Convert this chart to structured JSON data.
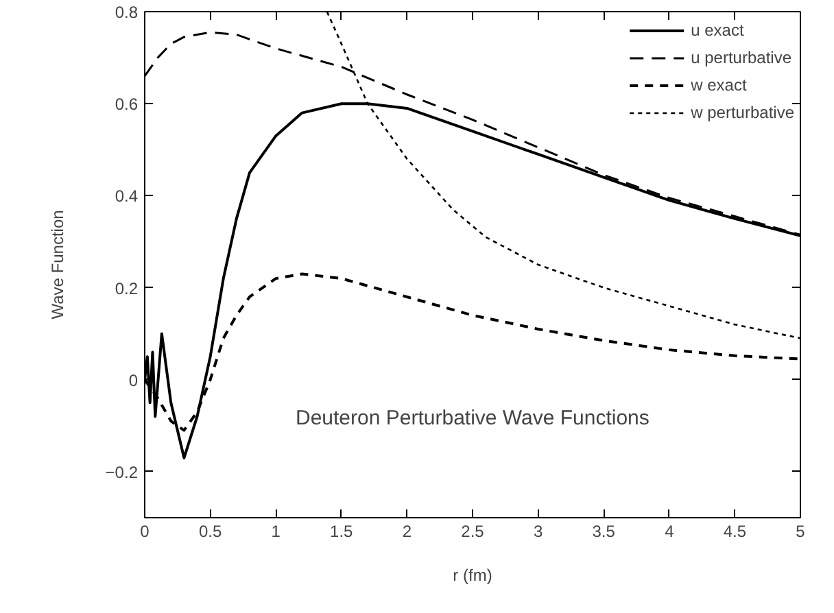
{
  "chart_data": {
    "type": "line",
    "xlabel": "r (fm)",
    "ylabel": "Wave Function",
    "annotations": [
      "Deuteron Perturbative Wave Functions"
    ],
    "xlim": [
      0,
      5
    ],
    "ylim": [
      -0.3,
      0.8
    ],
    "xticks": [
      0,
      0.5,
      1,
      1.5,
      2,
      2.5,
      3,
      3.5,
      4,
      4.5,
      5
    ],
    "yticks": [
      {
        "value": -0.2,
        "label": "−0.2"
      },
      0,
      0.2,
      0.4,
      0.6,
      0.8
    ],
    "grid": false,
    "legend": "top right",
    "marker": "none",
    "series": [
      {
        "name": "u exact",
        "color": "#000000",
        "line_style": "solid",
        "x": [
          0,
          0.02,
          0.04,
          0.06,
          0.08,
          0.13,
          0.2,
          0.3,
          0.4,
          0.5,
          0.6,
          0.7,
          0.8,
          1.0,
          1.2,
          1.5,
          1.7,
          2,
          2.5,
          3,
          3.5,
          4,
          4.5,
          5
        ],
        "values": [
          0,
          0.05,
          -0.05,
          0.06,
          -0.08,
          0.1,
          -0.05,
          -0.17,
          -0.08,
          0.05,
          0.22,
          0.35,
          0.45,
          0.53,
          0.58,
          0.6,
          0.6,
          0.59,
          0.54,
          0.49,
          0.44,
          0.39,
          0.35,
          0.313
        ]
      },
      {
        "name": "u perturbative",
        "color": "#000000",
        "line_style": "dashed",
        "x": [
          0,
          0.1,
          0.2,
          0.3,
          0.5,
          0.7,
          1.0,
          1.5,
          2,
          2.5,
          3,
          3.5,
          4,
          4.5,
          5
        ],
        "values": [
          0.66,
          0.7,
          0.73,
          0.745,
          0.755,
          0.75,
          0.72,
          0.68,
          0.62,
          0.565,
          0.505,
          0.445,
          0.395,
          0.355,
          0.315
        ]
      },
      {
        "name": "w exact",
        "color": "#000000",
        "line_style": "dashed",
        "x": [
          0,
          0.1,
          0.2,
          0.3,
          0.4,
          0.5,
          0.6,
          0.7,
          0.8,
          1,
          1.2,
          1.5,
          2,
          2.5,
          3,
          3.5,
          4,
          4.5,
          5
        ],
        "values": [
          0,
          -0.04,
          -0.09,
          -0.11,
          -0.07,
          0,
          0.09,
          0.14,
          0.18,
          0.22,
          0.23,
          0.22,
          0.18,
          0.14,
          0.11,
          0.085,
          0.065,
          0.052,
          0.045
        ]
      },
      {
        "name": "w perturbative",
        "color": "#000000",
        "line_style": "dotted",
        "x": [
          1.39,
          1.5,
          1.7,
          2,
          2.35,
          2.6,
          3,
          3.5,
          4,
          4.5,
          5
        ],
        "values": [
          0.8,
          0.73,
          0.6,
          0.48,
          0.37,
          0.31,
          0.25,
          0.2,
          0.16,
          0.12,
          0.09
        ]
      }
    ]
  }
}
